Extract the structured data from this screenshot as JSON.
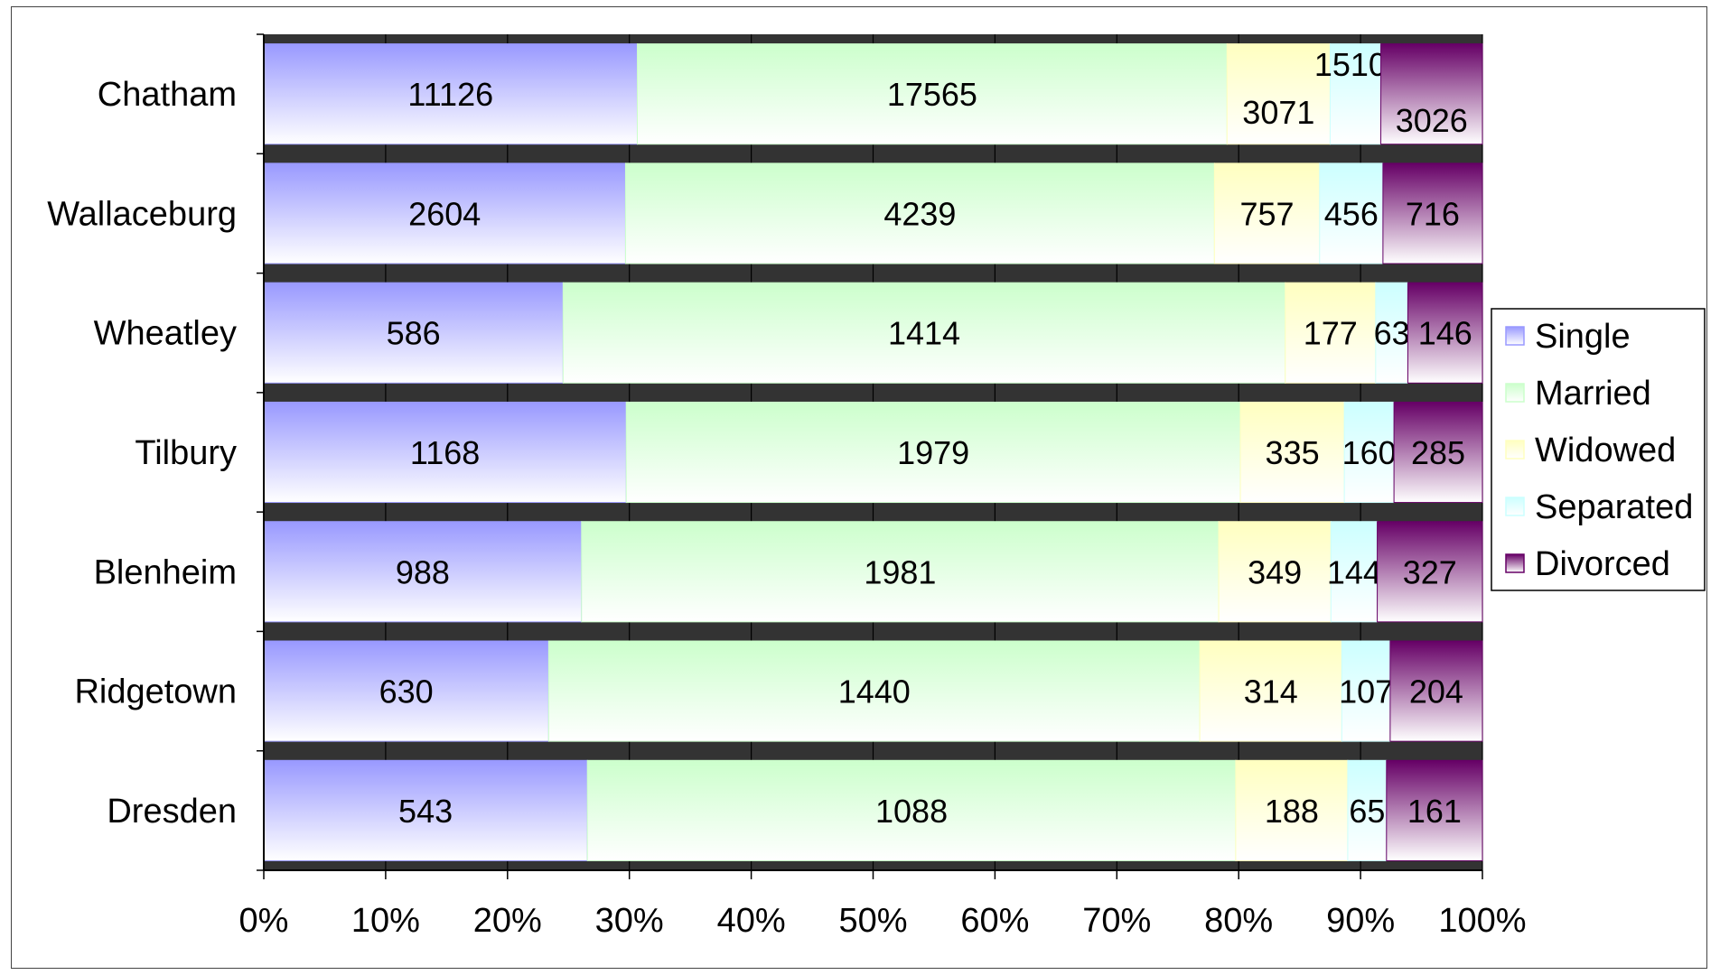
{
  "chart_data": {
    "type": "bar",
    "orientation": "horizontal",
    "stacked": "percent",
    "categories": [
      "Chatham",
      "Wallaceburg",
      "Wheatley",
      "Tilbury",
      "Blenheim",
      "Ridgetown",
      "Dresden"
    ],
    "series": [
      {
        "name": "Single",
        "values": [
          11126,
          2604,
          586,
          1168,
          988,
          630,
          543
        ],
        "color": "#9999ff"
      },
      {
        "name": "Married",
        "values": [
          17565,
          4239,
          1414,
          1979,
          1981,
          1440,
          1088
        ],
        "color": "#ccffcc"
      },
      {
        "name": "Widowed",
        "values": [
          3071,
          757,
          177,
          335,
          349,
          314,
          188
        ],
        "color": "#ffffc0"
      },
      {
        "name": "Separated",
        "values": [
          1510,
          456,
          63,
          160,
          144,
          107,
          65
        ],
        "color": "#ccffff"
      },
      {
        "name": "Divorced",
        "values": [
          3026,
          716,
          146,
          285,
          327,
          204,
          161
        ],
        "color": "#660066"
      }
    ],
    "xlim": [
      0,
      100
    ],
    "xticks": [
      "0%",
      "10%",
      "20%",
      "30%",
      "40%",
      "50%",
      "60%",
      "70%",
      "80%",
      "90%",
      "100%"
    ],
    "grid": true,
    "plot_background": "#333333",
    "legend_position": "right"
  }
}
